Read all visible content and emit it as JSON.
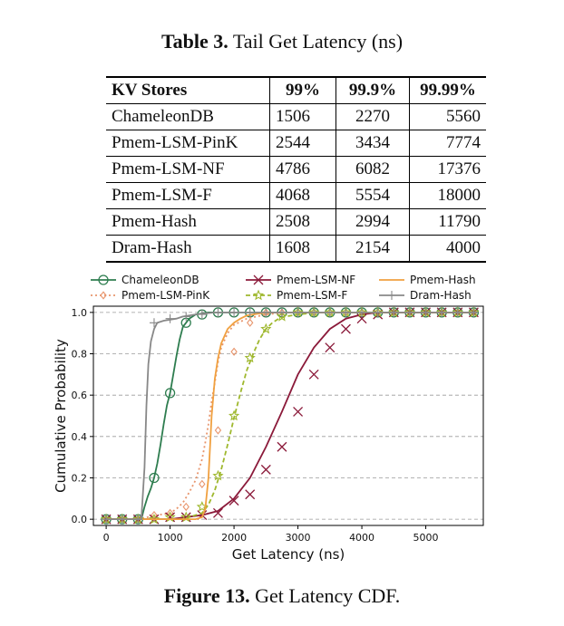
{
  "table": {
    "caption_label": "Table 3.",
    "caption_text": " Tail Get Latency (ns)",
    "headers": [
      "KV Stores",
      "99%",
      "99.9%",
      "99.99%"
    ],
    "rows": [
      {
        "store": "ChameleonDB",
        "p99": "1506",
        "p999": "2270",
        "p9999": "5560"
      },
      {
        "store": "Pmem-LSM-PinK",
        "p99": "2544",
        "p999": "3434",
        "p9999": "7774"
      },
      {
        "store": "Pmem-LSM-NF",
        "p99": "4786",
        "p999": "6082",
        "p9999": "17376"
      },
      {
        "store": "Pmem-LSM-F",
        "p99": "4068",
        "p999": "5554",
        "p9999": "18000"
      },
      {
        "store": "Pmem-Hash",
        "p99": "2508",
        "p999": "2994",
        "p9999": "11790"
      },
      {
        "store": "Dram-Hash",
        "p99": "1608",
        "p999": "2154",
        "p9999": "4000"
      }
    ]
  },
  "figure": {
    "caption_label": "Figure 13.",
    "caption_text": " Get Latency CDF."
  },
  "chart_data": {
    "type": "line",
    "title": "",
    "xlabel": "Get Latency (ns)",
    "ylabel": "Cumulative Probability",
    "xlim": [
      -200,
      5900
    ],
    "ylim": [
      -0.03,
      1.03
    ],
    "xticks": [
      0,
      1000,
      2000,
      3000,
      4000,
      5000
    ],
    "yticks": [
      0.0,
      0.2,
      0.4,
      0.6,
      0.8,
      1.0
    ],
    "xtick_labels": [
      "0",
      "1000",
      "2000",
      "3000",
      "4000",
      "5000"
    ],
    "ytick_labels": [
      "0.0",
      "0.2",
      "0.4",
      "0.6",
      "0.8",
      "1.0"
    ],
    "grid": "horizontal-dashed",
    "legend_position": "top-outside",
    "marker_x": [
      0,
      250,
      500,
      750,
      1000,
      1250,
      1500,
      1750,
      2000,
      2250,
      2500,
      2750,
      3000,
      3250,
      3500,
      3750,
      4000,
      4250,
      4500,
      4750,
      5000,
      5250,
      5500,
      5750
    ],
    "series": [
      {
        "name": "ChameleonDB",
        "color": "#2e7d4f",
        "marker": "circle",
        "dash": "solid",
        "curve_x": [
          0,
          550,
          600,
          650,
          700,
          750,
          800,
          850,
          900,
          950,
          1000,
          1050,
          1100,
          1150,
          1200,
          1300,
          1400,
          1500,
          1600,
          1800,
          2000,
          5800
        ],
        "curve_y": [
          0,
          0,
          0.06,
          0.11,
          0.15,
          0.2,
          0.27,
          0.36,
          0.46,
          0.55,
          0.61,
          0.7,
          0.79,
          0.87,
          0.93,
          0.97,
          0.99,
          0.995,
          1.0,
          1.0,
          1.0,
          1.0
        ],
        "marker_y": [
          0,
          0,
          0,
          0.2,
          0.61,
          0.95,
          0.99,
          1.0,
          1.0,
          1.0,
          1.0,
          1.0,
          1.0,
          1.0,
          1.0,
          1.0,
          1.0,
          1.0,
          1.0,
          1.0,
          1.0,
          1.0,
          1.0,
          1.0
        ]
      },
      {
        "name": "Pmem-LSM-PinK",
        "color": "#e8956c",
        "marker": "diamond",
        "dash": "dotted",
        "curve_x": [
          0,
          500,
          800,
          1000,
          1100,
          1200,
          1300,
          1400,
          1500,
          1550,
          1600,
          1650,
          1700,
          1750,
          1800,
          1900,
          2000,
          2200,
          2500,
          2800,
          5800
        ],
        "curve_y": [
          0,
          0,
          0.02,
          0.03,
          0.05,
          0.08,
          0.13,
          0.19,
          0.29,
          0.37,
          0.46,
          0.57,
          0.66,
          0.76,
          0.83,
          0.9,
          0.94,
          0.97,
          0.99,
          1.0,
          1.0
        ],
        "marker_y": [
          0,
          0,
          0,
          0.02,
          0.03,
          0.06,
          0.17,
          0.43,
          0.81,
          0.95,
          1.0,
          1.0,
          1.0,
          1.0,
          1.0,
          1.0,
          1.0,
          1.0,
          1.0,
          1.0,
          1.0,
          1.0,
          1.0,
          1.0
        ]
      },
      {
        "name": "Pmem-LSM-NF",
        "color": "#8b1a3a",
        "marker": "x",
        "dash": "solid",
        "curve_x": [
          0,
          1000,
          1500,
          1750,
          2000,
          2250,
          2500,
          2750,
          3000,
          3250,
          3500,
          3750,
          4000,
          4250,
          4500,
          5000,
          5800
        ],
        "curve_y": [
          0,
          0,
          0.02,
          0.04,
          0.1,
          0.2,
          0.35,
          0.52,
          0.7,
          0.83,
          0.92,
          0.97,
          0.99,
          1.0,
          1.0,
          1.0,
          1.0
        ],
        "marker_y": [
          0,
          0,
          0,
          0,
          0.01,
          0.01,
          0.02,
          0.03,
          0.09,
          0.12,
          0.24,
          0.35,
          0.52,
          0.7,
          0.83,
          0.92,
          0.97,
          0.99,
          1.0,
          1.0,
          1.0,
          1.0,
          1.0,
          1.0
        ]
      },
      {
        "name": "Pmem-LSM-F",
        "color": "#9fb82e",
        "marker": "star",
        "dash": "dashed",
        "curve_x": [
          0,
          1200,
          1500,
          1600,
          1700,
          1800,
          1900,
          2000,
          2100,
          2200,
          2300,
          2400,
          2500,
          2600,
          2700,
          2800,
          3000,
          3300,
          5800
        ],
        "curve_y": [
          0,
          0,
          0.03,
          0.07,
          0.14,
          0.24,
          0.36,
          0.49,
          0.61,
          0.72,
          0.8,
          0.87,
          0.92,
          0.95,
          0.97,
          0.98,
          0.99,
          1.0,
          1.0
        ],
        "marker_y": [
          0,
          0,
          0,
          0,
          0.01,
          0.01,
          0.06,
          0.21,
          0.5,
          0.78,
          0.92,
          0.98,
          1.0,
          1.0,
          1.0,
          1.0,
          1.0,
          1.0,
          1.0,
          1.0,
          1.0,
          1.0,
          1.0,
          1.0
        ]
      },
      {
        "name": "Pmem-Hash",
        "color": "#f0a040",
        "marker": "none",
        "dash": "solid",
        "curve_x": [
          0,
          1400,
          1500,
          1550,
          1600,
          1650,
          1700,
          1750,
          1800,
          1900,
          2000,
          2100,
          2200,
          2400,
          2600,
          5800
        ],
        "curve_y": [
          0,
          0,
          0.01,
          0.05,
          0.2,
          0.5,
          0.68,
          0.78,
          0.85,
          0.92,
          0.95,
          0.97,
          0.985,
          0.995,
          1.0,
          1.0
        ],
        "marker_y": []
      },
      {
        "name": "Dram-Hash",
        "color": "#888888",
        "marker": "plus",
        "dash": "solid",
        "curve_x": [
          0,
          550,
          600,
          630,
          660,
          700,
          750,
          800,
          900,
          1000,
          1100,
          1200,
          1400,
          1700,
          5800
        ],
        "curve_y": [
          0,
          0,
          0.25,
          0.55,
          0.75,
          0.86,
          0.92,
          0.95,
          0.96,
          0.965,
          0.97,
          0.98,
          0.99,
          1.0,
          1.0
        ],
        "marker_y": [
          0,
          0,
          0,
          0.95,
          0.97,
          0.98,
          0.99,
          1.0,
          1.0,
          1.0,
          1.0,
          1.0,
          1.0,
          1.0,
          1.0,
          1.0,
          1.0,
          1.0,
          1.0,
          1.0,
          1.0,
          1.0,
          1.0,
          1.0
        ]
      }
    ]
  }
}
